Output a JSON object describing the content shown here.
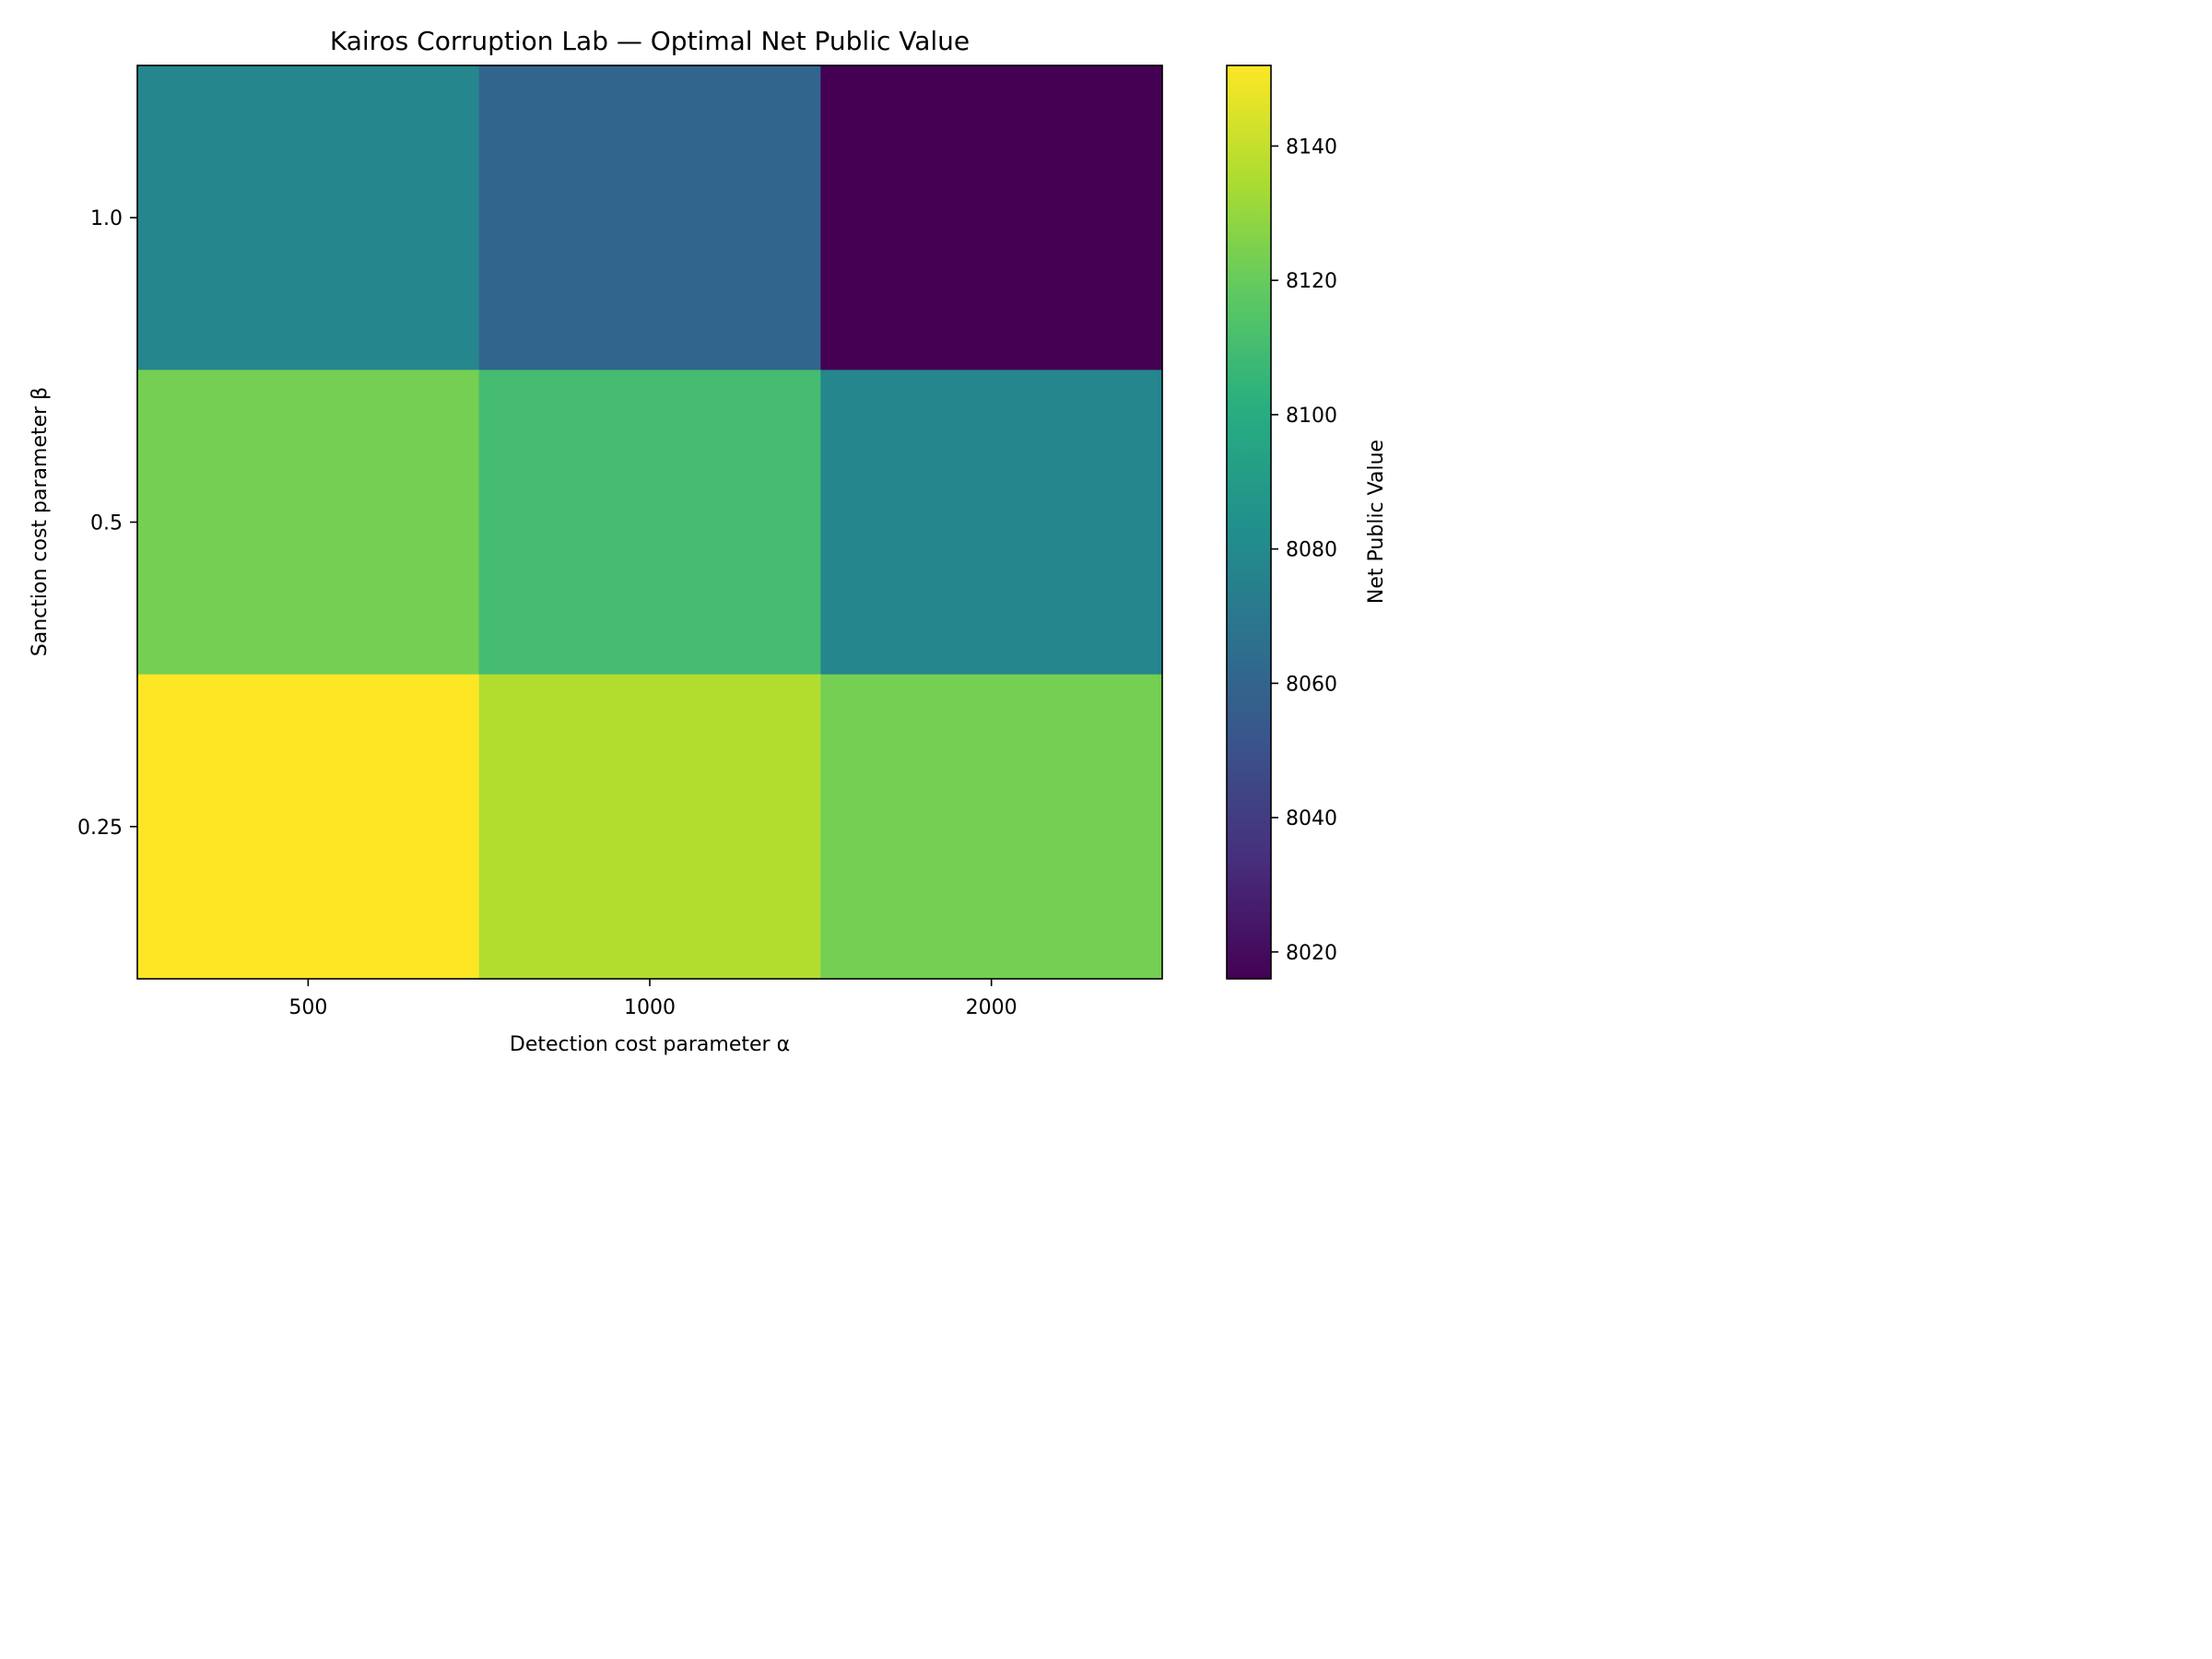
{
  "chart_data": {
    "type": "heatmap",
    "title": "Kairos Corruption Lab — Optimal Net Public Value",
    "xlabel": "Detection cost parameter α",
    "ylabel": "Sanction cost parameter β",
    "x_categories": [
      "500",
      "1000",
      "2000"
    ],
    "y_categories": [
      "1.0",
      "0.5",
      "0.25"
    ],
    "values": [
      [
        8078,
        8060,
        8016
      ],
      [
        8123,
        8110,
        8078
      ],
      [
        8152,
        8136,
        8123
      ]
    ],
    "colorbar": {
      "label": "Net Public Value",
      "range": [
        8016,
        8152
      ],
      "ticks": [
        8020,
        8040,
        8060,
        8080,
        8100,
        8120,
        8140
      ],
      "colormap": "viridis"
    },
    "grid": false,
    "legend": "none"
  }
}
